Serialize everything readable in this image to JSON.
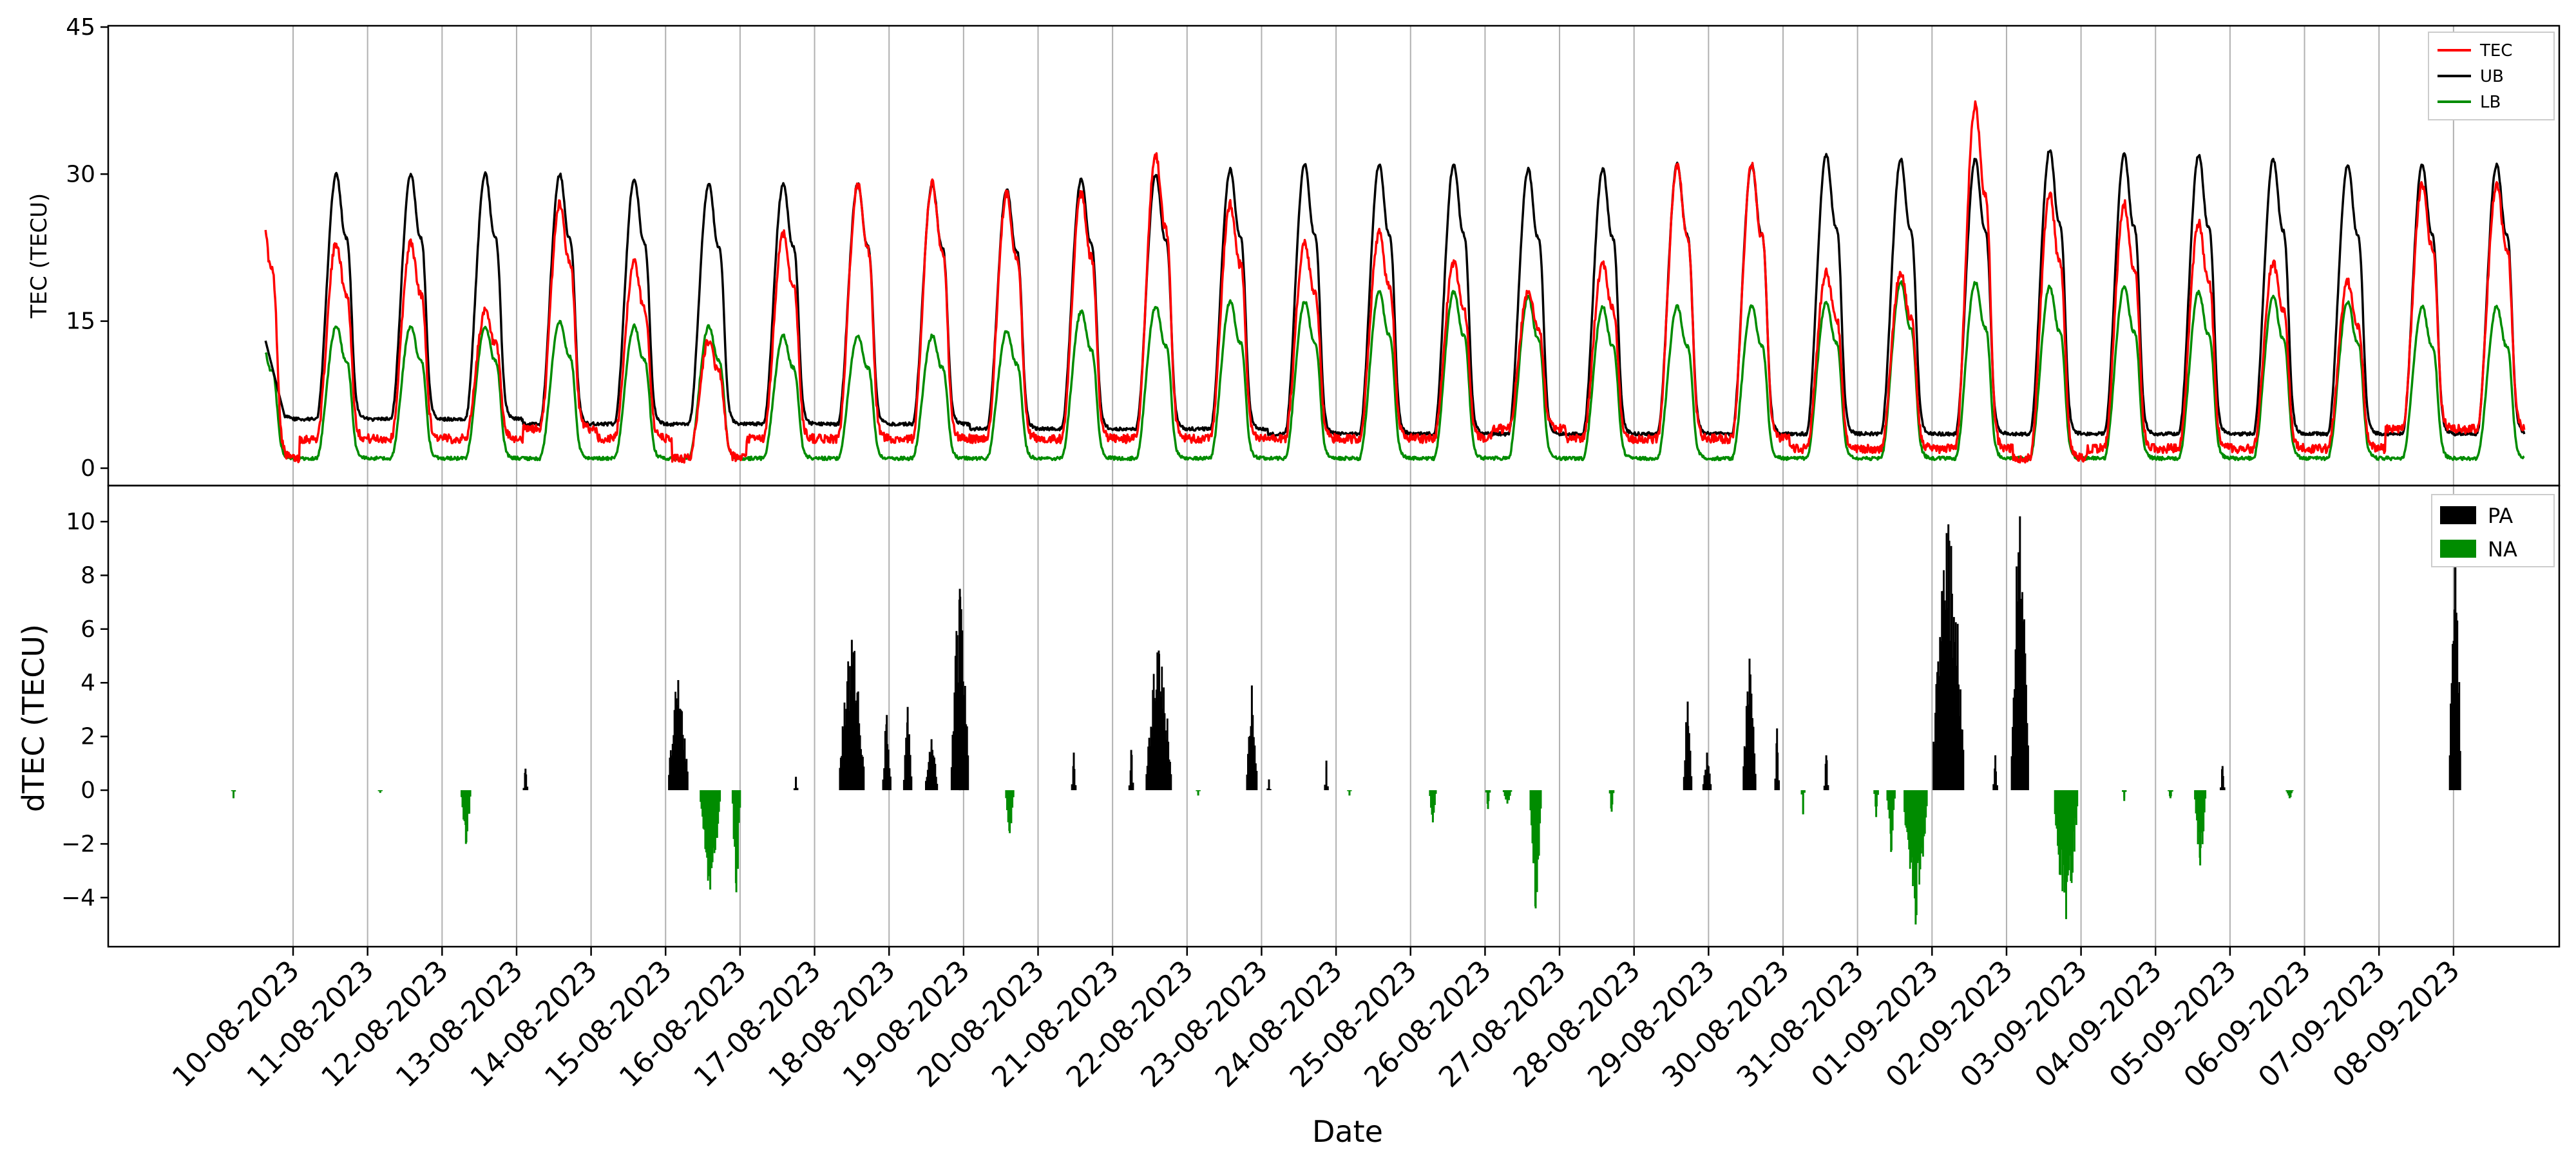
{
  "chart_data": [
    {
      "panel": "top",
      "type": "line",
      "ylabel": "TEC (TECU)",
      "ylim": [
        0,
        45
      ],
      "yticks": [
        0,
        15,
        30,
        45
      ],
      "legend_placement": "top-right",
      "grid": "vertical",
      "series": [
        {
          "name": "TEC",
          "color": "#ff0000",
          "daily_peak": [
            27,
            23,
            23,
            16,
            27,
            21,
            13,
            24,
            29,
            29,
            28,
            28,
            32,
            27,
            23,
            24,
            21,
            18,
            21,
            31,
            31,
            20,
            20,
            37,
            28,
            27,
            25,
            21,
            19,
            29
          ],
          "daily_min": [
            1,
            3,
            3,
            3,
            4,
            3,
            1,
            3,
            3,
            3,
            3,
            3,
            3,
            3,
            3,
            3,
            3,
            4,
            3,
            3,
            3,
            2,
            2,
            2,
            1,
            2,
            2,
            2,
            2,
            4
          ]
        },
        {
          "name": "UB",
          "color": "#000000",
          "daily_peak": [
            30,
            30,
            30,
            30,
            30,
            29.5,
            29,
            29,
            29,
            29,
            28.5,
            29.5,
            30,
            30.5,
            31,
            31,
            31,
            30.5,
            30.5,
            31,
            31,
            32,
            31.5,
            31.5,
            32.5,
            32,
            32,
            31.5,
            31,
            31
          ],
          "daily_min": [
            5,
            5,
            5,
            5,
            4.5,
            4.5,
            4.5,
            4.5,
            4.5,
            4.5,
            4,
            4,
            4,
            4,
            3.5,
            3.5,
            3.5,
            3.5,
            3.5,
            3.5,
            3.5,
            3.5,
            3.5,
            3.5,
            3.5,
            3.5,
            3.5,
            3.5,
            3.5,
            3.5
          ]
        },
        {
          "name": "LB",
          "color": "#008c00",
          "daily_peak": [
            13,
            14.5,
            14.5,
            14.5,
            15,
            14.5,
            14.5,
            13.5,
            13.5,
            13.5,
            14,
            16,
            16.5,
            17,
            17,
            18,
            18,
            17.5,
            16.5,
            16.5,
            16.5,
            17,
            19,
            19,
            18.5,
            18.5,
            18,
            17.5,
            17,
            16.5
          ],
          "daily_min": [
            1,
            1,
            1,
            1,
            1,
            1,
            1,
            1,
            1,
            1,
            1,
            1,
            1,
            1,
            1,
            1,
            1,
            1,
            1,
            1,
            1,
            1,
            1,
            1,
            1,
            1,
            1,
            1,
            1,
            1
          ]
        }
      ]
    },
    {
      "panel": "bottom",
      "type": "bar",
      "ylabel": "dTEC (TECU)",
      "xlabel": "Date",
      "ylim": [
        -5.8,
        11.2
      ],
      "yticks": [
        -4,
        -2,
        0,
        2,
        4,
        6,
        8,
        10
      ],
      "legend_placement": "top-right",
      "grid": "vertical",
      "x": [
        "10-08-2023",
        "11-08-2023",
        "12-08-2023",
        "13-08-2023",
        "14-08-2023",
        "15-08-2023",
        "16-08-2023",
        "17-08-2023",
        "18-08-2023",
        "19-08-2023",
        "20-08-2023",
        "21-08-2023",
        "22-08-2023",
        "23-08-2023",
        "24-08-2023",
        "25-08-2023",
        "26-08-2023",
        "27-08-2023",
        "28-08-2023",
        "29-08-2023",
        "30-08-2023",
        "31-08-2023",
        "01-09-2023",
        "02-09-2023",
        "03-09-2023",
        "04-09-2023",
        "05-09-2023",
        "06-09-2023",
        "07-09-2023",
        "08-09-2023"
      ],
      "series": [
        {
          "name": "PA",
          "color": "#000000",
          "events": [
            {
              "day": 4.12,
              "peak": 0.8,
              "width": 0.05
            },
            {
              "day": 6.17,
              "peak": 4.1,
              "width": 0.25
            },
            {
              "day": 7.75,
              "peak": 0.5,
              "width": 0.04
            },
            {
              "day": 8.5,
              "peak": 5.6,
              "width": 0.32
            },
            {
              "day": 8.97,
              "peak": 2.8,
              "width": 0.1
            },
            {
              "day": 9.25,
              "peak": 3.1,
              "width": 0.1
            },
            {
              "day": 9.57,
              "peak": 1.9,
              "width": 0.15
            },
            {
              "day": 9.95,
              "peak": 7.5,
              "width": 0.22
            },
            {
              "day": 11.48,
              "peak": 1.4,
              "width": 0.05
            },
            {
              "day": 12.25,
              "peak": 1.5,
              "width": 0.05
            },
            {
              "day": 12.62,
              "peak": 5.2,
              "width": 0.33
            },
            {
              "day": 13.87,
              "peak": 3.9,
              "width": 0.13
            },
            {
              "day": 14.1,
              "peak": 0.4,
              "width": 0.04
            },
            {
              "day": 14.87,
              "peak": 1.1,
              "width": 0.04
            },
            {
              "day": 19.72,
              "peak": 3.3,
              "width": 0.1
            },
            {
              "day": 19.98,
              "peak": 1.4,
              "width": 0.1
            },
            {
              "day": 20.55,
              "peak": 4.9,
              "width": 0.16
            },
            {
              "day": 20.92,
              "peak": 2.3,
              "width": 0.05
            },
            {
              "day": 21.58,
              "peak": 1.3,
              "width": 0.05
            },
            {
              "day": 23.22,
              "peak": 9.9,
              "width": 0.4
            },
            {
              "day": 23.85,
              "peak": 1.3,
              "width": 0.05
            },
            {
              "day": 24.18,
              "peak": 10.2,
              "width": 0.22
            },
            {
              "day": 26.9,
              "peak": 0.9,
              "width": 0.05
            },
            {
              "day": 30.02,
              "peak": 10.1,
              "width": 0.14
            }
          ]
        },
        {
          "name": "NA",
          "color": "#008c00",
          "events": [
            {
              "day": 0.2,
              "peak": -0.3,
              "width": 0.04
            },
            {
              "day": 2.17,
              "peak": -0.1,
              "width": 0.04
            },
            {
              "day": 3.32,
              "peak": -2.0,
              "width": 0.12
            },
            {
              "day": 6.6,
              "peak": -3.7,
              "width": 0.26
            },
            {
              "day": 6.95,
              "peak": -3.8,
              "width": 0.1
            },
            {
              "day": 10.62,
              "peak": -1.6,
              "width": 0.1
            },
            {
              "day": 13.15,
              "peak": -0.2,
              "width": 0.04
            },
            {
              "day": 15.18,
              "peak": -0.2,
              "width": 0.04
            },
            {
              "day": 16.3,
              "peak": -1.2,
              "width": 0.08
            },
            {
              "day": 17.04,
              "peak": -0.7,
              "width": 0.05
            },
            {
              "day": 17.3,
              "peak": -0.5,
              "width": 0.1
            },
            {
              "day": 17.68,
              "peak": -4.4,
              "width": 0.14
            },
            {
              "day": 18.7,
              "peak": -0.8,
              "width": 0.05
            },
            {
              "day": 21.27,
              "peak": -0.9,
              "width": 0.04
            },
            {
              "day": 22.25,
              "peak": -1.0,
              "width": 0.05
            },
            {
              "day": 22.45,
              "peak": -2.3,
              "width": 0.1
            },
            {
              "day": 22.78,
              "peak": -5.0,
              "width": 0.3
            },
            {
              "day": 24.8,
              "peak": -4.8,
              "width": 0.3
            },
            {
              "day": 25.58,
              "peak": -0.4,
              "width": 0.04
            },
            {
              "day": 26.2,
              "peak": -0.3,
              "width": 0.05
            },
            {
              "day": 26.6,
              "peak": -2.8,
              "width": 0.14
            },
            {
              "day": 27.8,
              "peak": -0.3,
              "width": 0.08
            }
          ]
        }
      ]
    }
  ]
}
